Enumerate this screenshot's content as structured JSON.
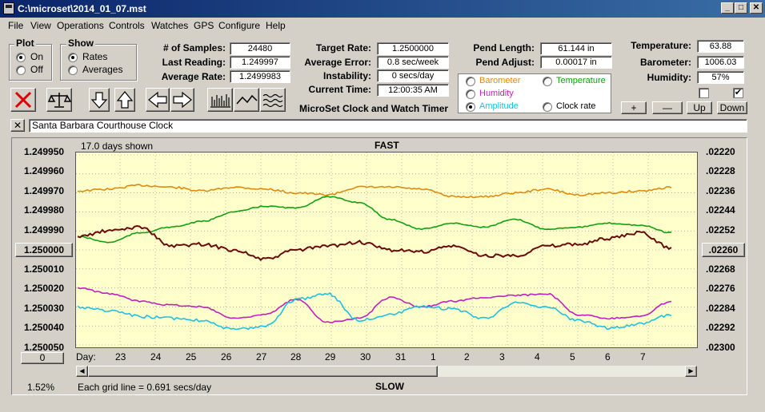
{
  "window": {
    "title": "C:\\microset\\2014_01_07.mst"
  },
  "menu": [
    "File",
    "View",
    "Operations",
    "Controls",
    "Watches",
    "GPS",
    "Configure",
    "Help"
  ],
  "plot_group": {
    "title": "Plot",
    "options": [
      "On",
      "Off"
    ],
    "selected": "On"
  },
  "show_group": {
    "title": "Show",
    "options": [
      "Rates",
      "Averages"
    ],
    "selected": "Rates"
  },
  "stats": {
    "samples_label": "# of Samples:",
    "samples": "24480",
    "last_label": "Last Reading:",
    "last": "1.249997",
    "avg_label": "Average Rate:",
    "avg": "1.2499983"
  },
  "rates": {
    "target_label": "Target Rate:",
    "target": "1.2500000",
    "error_label": "Average Error:",
    "error": "0.8 sec/week",
    "instab_label": "Instability:",
    "instab": "0 secs/day",
    "time_label": "Current Time:",
    "time": "12:00:35 AM"
  },
  "app_name": "MicroSet Clock and Watch Timer",
  "pend": {
    "length_label": "Pend Length:",
    "length": "61.144 in",
    "adjust_label": "Pend Adjust:",
    "adjust": "0.00017 in"
  },
  "sensors": {
    "temp_label": "Temperature:",
    "temp": "63.88",
    "baro_label": "Barometer:",
    "baro": "1006.03",
    "hum_label": "Humidity:",
    "hum": "57%"
  },
  "right_plot_options": {
    "items": [
      {
        "label": "Barometer",
        "color": "#e08a10"
      },
      {
        "label": "Temperature",
        "color": "#10a010"
      },
      {
        "label": "Humidity",
        "color": "#c020c0"
      },
      {
        "label": "Clock rate",
        "color": "#000000"
      },
      {
        "label": "Amplitude",
        "color": "#20c0e0"
      }
    ],
    "selected": "Amplitude"
  },
  "adjust_buttons": [
    "+",
    "—",
    "Up",
    "Down"
  ],
  "clock_name": "Santa Barbara Courthouse Clock",
  "chart_data": {
    "type": "line",
    "days_shown": "17.0 days shown",
    "top_label": "FAST",
    "bottom_label": "SLOW",
    "grid_note": "Each grid line = 0.691 secs/day",
    "percent": "1.52%",
    "y_left_ticks": [
      "1.249950",
      "1.249960",
      "1.249970",
      "1.249980",
      "1.249990",
      "1.250000",
      "1.250010",
      "1.250020",
      "1.250030",
      "1.250040",
      "1.250050"
    ],
    "y_right_ticks": [
      ".02220",
      ".02228",
      ".02236",
      ".02244",
      ".02252",
      ".02260",
      ".02268",
      ".02276",
      ".02284",
      ".02292",
      ".02300"
    ],
    "center_left": "1.250000",
    "center_right": ".02260",
    "x_title": "Day:",
    "x_ticks": [
      "23",
      "24",
      "25",
      "26",
      "27",
      "28",
      "29",
      "30",
      "31",
      "1",
      "2",
      "3",
      "4",
      "5",
      "6",
      "7"
    ],
    "zero_button": "0",
    "series": [
      {
        "color": "#e08a10",
        "values": [
          1.249969,
          1.249968,
          1.249966,
          1.249967,
          1.249969,
          1.249967,
          1.249968,
          1.24997,
          1.249971,
          1.249967,
          1.249967,
          1.249968,
          1.249972,
          1.249972,
          1.24997,
          1.249968,
          1.249971,
          1.24997,
          1.249969,
          1.249967
        ]
      },
      {
        "color": "#10a010",
        "values": [
          1.249993,
          1.249996,
          1.249991,
          1.249988,
          1.249985,
          1.24998,
          1.249977,
          1.249978,
          1.249972,
          1.249975,
          1.249984,
          1.249989,
          1.249986,
          1.249988,
          1.249984,
          1.249989,
          1.249988,
          1.249986,
          1.249987,
          1.249991
        ]
      },
      {
        "color": "#6b0a0a",
        "values": [
          1.249993,
          1.24999,
          1.249988,
          1.249998,
          1.249997,
          1.25,
          1.250005,
          1.25,
          1.249998,
          1.249996,
          1.25,
          1.250001,
          1.249998,
          1.250003,
          1.250003,
          1.249998,
          1.249997,
          1.249994,
          1.249991,
          1.249999
        ]
      },
      {
        "color": "#c020c0",
        "values": [
          1.25002,
          1.250023,
          1.250027,
          1.250029,
          1.25003,
          1.250036,
          1.250034,
          1.250026,
          1.250038,
          1.250036,
          1.250025,
          1.25003,
          1.250027,
          1.250025,
          1.250024,
          1.250023,
          1.250034,
          1.250036,
          1.250035,
          1.250027
        ]
      },
      {
        "color": "#20c0e0",
        "values": [
          1.25003,
          1.250032,
          1.250035,
          1.250036,
          1.250037,
          1.250042,
          1.25004,
          1.250026,
          1.250023,
          1.250037,
          1.250034,
          1.25003,
          1.250031,
          1.250036,
          1.250028,
          1.25003,
          1.250037,
          1.250041,
          1.250039,
          1.250034
        ]
      }
    ]
  }
}
